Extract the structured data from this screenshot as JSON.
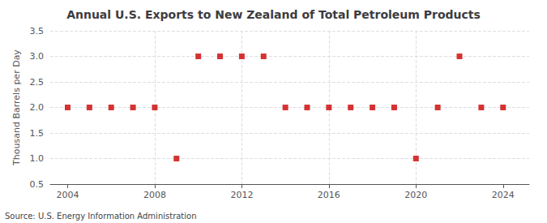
{
  "chart_data": {
    "type": "scatter",
    "title": "Annual U.S. Exports to New Zealand of Total Petroleum Products",
    "ylabel": "Thousand Barrels per Day",
    "annotation": "Source: U.S. Energy Information Administration",
    "x": [
      2004,
      2005,
      2006,
      2007,
      2008,
      2009,
      2010,
      2011,
      2012,
      2013,
      2014,
      2015,
      2016,
      2017,
      2018,
      2019,
      2020,
      2021,
      2022,
      2023,
      2024
    ],
    "values": [
      2,
      2,
      2,
      2,
      2,
      1,
      3,
      3,
      3,
      3,
      2,
      2,
      2,
      2,
      2,
      2,
      1,
      2,
      3,
      2,
      2
    ],
    "color": "#cc0000",
    "marker": "square",
    "xlim": [
      2003.2,
      2025.2
    ],
    "xticks": [
      2004,
      2008,
      2012,
      2016,
      2020,
      2024
    ],
    "ylim": [
      0.5,
      3.5
    ],
    "yticks": [
      0.5,
      {
        "value": 1,
        "label": "1.0"
      },
      1.5,
      {
        "value": 2,
        "label": "2.0"
      },
      2.5,
      {
        "value": 3,
        "label": "3.0"
      },
      3.5
    ],
    "grid": true
  }
}
